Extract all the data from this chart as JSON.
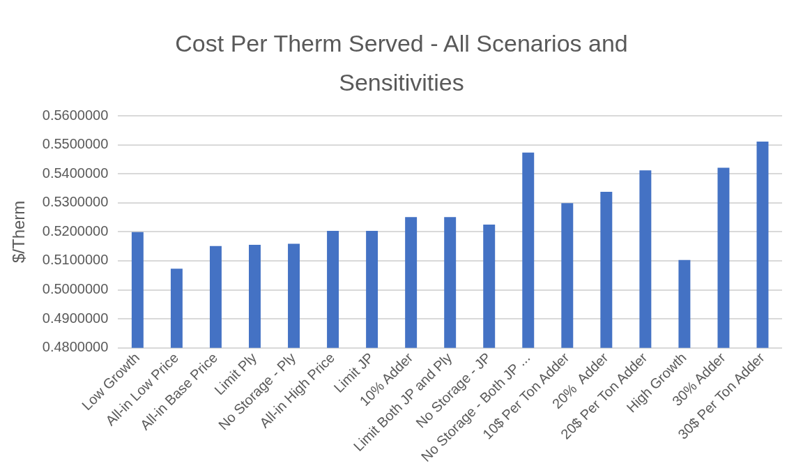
{
  "chart_data": {
    "type": "bar",
    "title": "Cost Per Therm Served - All Scenarios and Sensitivities",
    "ylabel": "$/Therm",
    "categories": [
      "Low Growth",
      "All-in Low Price",
      "All-in Base Price",
      "Limit Ply",
      "No Storage - Ply",
      "All-in High Price",
      "Limit JP",
      "10% Adder",
      "Limit Both JP and Ply",
      "No Storage - JP",
      "No Storage - Both JP ...",
      "10$ Per Ton Adder",
      "20%  Adder",
      "20$ Per Ton Adder",
      "High Growth",
      "30% Adder",
      "30$ Per Ton Adder"
    ],
    "values": [
      0.5199,
      0.5073,
      0.5151,
      0.5155,
      0.5159,
      0.5203,
      0.5203,
      0.5251,
      0.5251,
      0.5225,
      0.5473,
      0.5299,
      0.5338,
      0.5412,
      0.5103,
      0.5421,
      0.5511
    ],
    "color": "#4472c4",
    "ylim": [
      0.48,
      0.56
    ],
    "yticks": [
      {
        "value": 0.48,
        "label": "0.4800000"
      },
      {
        "value": 0.49,
        "label": "0.4900000"
      },
      {
        "value": 0.5,
        "label": "0.5000000"
      },
      {
        "value": 0.51,
        "label": "0.5100000"
      },
      {
        "value": 0.52,
        "label": "0.5200000"
      },
      {
        "value": 0.53,
        "label": "0.5300000"
      },
      {
        "value": 0.54,
        "label": "0.5400000"
      },
      {
        "value": 0.55,
        "label": "0.5500000"
      },
      {
        "value": 0.56,
        "label": "0.5600000"
      }
    ],
    "grid": "y",
    "legend": false
  }
}
